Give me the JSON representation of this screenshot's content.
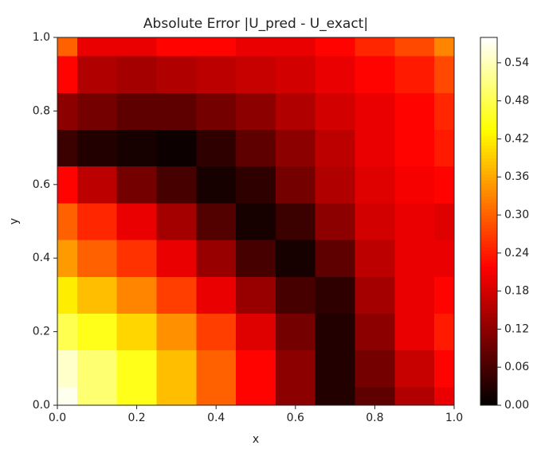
{
  "chart_data": {
    "type": "contour",
    "title": "Absolute Error |U_pred - U_exact|",
    "xlabel": "x",
    "ylabel": "y",
    "colormap": "hot",
    "x": [
      0,
      0.1,
      0.2,
      0.3,
      0.4,
      0.5,
      0.6,
      0.7,
      0.8,
      0.9,
      1.0
    ],
    "y": [
      0,
      0.1,
      0.2,
      0.3,
      0.4,
      0.5,
      0.6,
      0.7,
      0.8,
      0.9,
      1.0
    ],
    "z": [
      [
        0.57,
        0.5,
        0.45,
        0.38,
        0.3,
        0.22,
        0.12,
        0.03,
        0.08,
        0.15,
        0.2
      ],
      [
        0.55,
        0.5,
        0.45,
        0.38,
        0.3,
        0.22,
        0.12,
        0.03,
        0.1,
        0.17,
        0.22
      ],
      [
        0.48,
        0.45,
        0.4,
        0.34,
        0.27,
        0.19,
        0.1,
        0.03,
        0.12,
        0.2,
        0.24
      ],
      [
        0.42,
        0.38,
        0.33,
        0.27,
        0.2,
        0.13,
        0.06,
        0.04,
        0.14,
        0.2,
        0.22
      ],
      [
        0.35,
        0.3,
        0.26,
        0.2,
        0.13,
        0.06,
        0.02,
        0.08,
        0.16,
        0.2,
        0.2
      ],
      [
        0.3,
        0.25,
        0.2,
        0.14,
        0.07,
        0.02,
        0.05,
        0.12,
        0.18,
        0.2,
        0.19
      ],
      [
        0.22,
        0.16,
        0.1,
        0.06,
        0.02,
        0.04,
        0.1,
        0.15,
        0.19,
        0.21,
        0.22
      ],
      [
        0.05,
        0.03,
        0.02,
        0.01,
        0.04,
        0.08,
        0.12,
        0.16,
        0.2,
        0.22,
        0.24
      ],
      [
        0.12,
        0.1,
        0.08,
        0.08,
        0.1,
        0.12,
        0.15,
        0.18,
        0.2,
        0.22,
        0.25
      ],
      [
        0.22,
        0.15,
        0.14,
        0.15,
        0.16,
        0.17,
        0.18,
        0.2,
        0.22,
        0.24,
        0.28
      ],
      [
        0.3,
        0.2,
        0.2,
        0.22,
        0.22,
        0.2,
        0.2,
        0.22,
        0.25,
        0.28,
        0.33
      ]
    ],
    "xlim": [
      0,
      1
    ],
    "ylim": [
      0,
      1
    ],
    "xticks": [
      {
        "value": 0,
        "label": "0.0"
      },
      {
        "value": 0.2,
        "label": "0.2"
      },
      {
        "value": 0.4,
        "label": "0.4"
      },
      {
        "value": 0.6,
        "label": "0.6"
      },
      {
        "value": 0.8,
        "label": "0.8"
      },
      {
        "value": 1,
        "label": "1.0"
      }
    ],
    "yticks": [
      {
        "value": 0,
        "label": "0.0"
      },
      {
        "value": 0.2,
        "label": "0.2"
      },
      {
        "value": 0.4,
        "label": "0.4"
      },
      {
        "value": 0.6,
        "label": "0.6"
      },
      {
        "value": 0.8,
        "label": "0.8"
      },
      {
        "value": 1,
        "label": "1.0"
      }
    ],
    "clim": [
      0,
      0.58
    ],
    "cticks": [
      {
        "value": 0,
        "label": "0.00"
      },
      {
        "value": 0.06,
        "label": "0.06"
      },
      {
        "value": 0.12,
        "label": "0.12"
      },
      {
        "value": 0.18,
        "label": "0.18"
      },
      {
        "value": 0.24,
        "label": "0.24"
      },
      {
        "value": 0.3,
        "label": "0.30"
      },
      {
        "value": 0.36,
        "label": "0.36"
      },
      {
        "value": 0.42,
        "label": "0.42"
      },
      {
        "value": 0.48,
        "label": "0.48"
      },
      {
        "value": 0.54,
        "label": "0.54"
      }
    ]
  }
}
